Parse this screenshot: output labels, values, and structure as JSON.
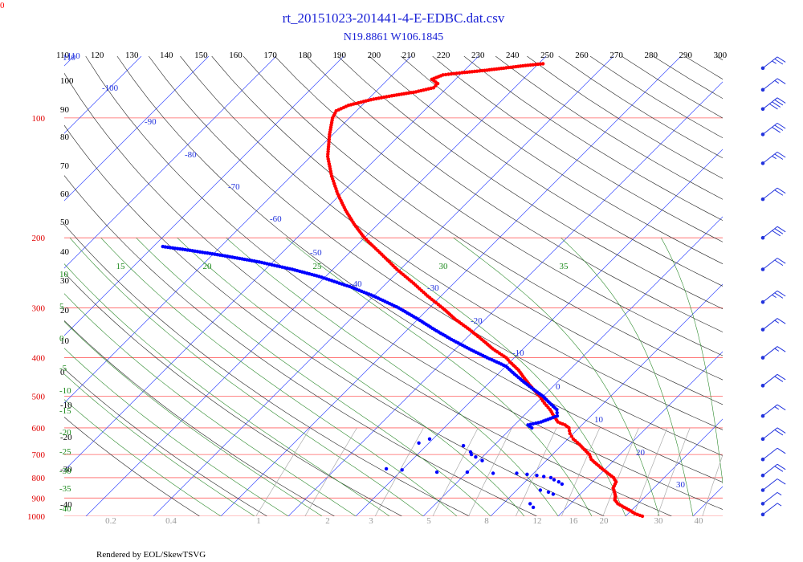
{
  "chart_data": {
    "type": "skew-t",
    "title": "rt_20151023-201441-4-E-EDBC.dat.csv",
    "subtitle": "N19.8861 W106.1845",
    "footer": "Rendered by EOL/SkewTSVG",
    "corner_label": "0",
    "pressure_axis": {
      "unit": "hPa",
      "range": [
        1000,
        70
      ],
      "ticks": [
        100,
        200,
        300,
        400,
        500,
        600,
        700,
        800,
        900,
        1000
      ]
    },
    "temperature_axis_top": {
      "unit": "K",
      "ticks": [
        110,
        120,
        130,
        140,
        150,
        160,
        170,
        180,
        190,
        200,
        210,
        220,
        230,
        240,
        250,
        260,
        270,
        280,
        290,
        300
      ]
    },
    "left_altitude_labels": [
      100,
      90,
      80,
      70,
      60,
      50,
      40,
      30,
      20,
      10,
      0,
      -10,
      -20,
      -30,
      -40
    ],
    "isotherm_labels": [
      -110,
      -100,
      -90,
      -80,
      -70,
      -60,
      -50,
      -40,
      -30,
      -20,
      -10,
      0,
      10,
      20,
      30
    ],
    "isotherm_top_label": "110",
    "moist_adiabat_labels": [
      10,
      5,
      0,
      -5,
      -10,
      -15,
      -20,
      -25,
      -30,
      -35,
      -40
    ],
    "moist_adiabat_top_labels": [
      15,
      20,
      25,
      30,
      35
    ],
    "mixing_ratio_labels": [
      "0.2",
      "0.4",
      "1",
      "2",
      "3",
      "5",
      "8",
      "12",
      "16",
      "20",
      "30",
      "40"
    ],
    "series": [
      {
        "kind": "temperature",
        "color": "#ff0000",
        "points": [
          [
            1000,
            22.5
          ],
          [
            985,
            21.0
          ],
          [
            970,
            20.0
          ],
          [
            950,
            18.5
          ],
          [
            930,
            17.0
          ],
          [
            910,
            16.0
          ],
          [
            890,
            15.5
          ],
          [
            870,
            14.8
          ],
          [
            850,
            14.0
          ],
          [
            820,
            13.5
          ],
          [
            800,
            12.5
          ],
          [
            780,
            11.0
          ],
          [
            760,
            9.5
          ],
          [
            740,
            8.0
          ],
          [
            720,
            6.5
          ],
          [
            700,
            5.5
          ],
          [
            680,
            4.0
          ],
          [
            660,
            2.5
          ],
          [
            640,
            0.8
          ],
          [
            620,
            -0.5
          ],
          [
            600,
            -1.5
          ],
          [
            590,
            -2.5
          ],
          [
            580,
            -4.0
          ],
          [
            560,
            -5.5
          ],
          [
            540,
            -7.0
          ],
          [
            520,
            -8.8
          ],
          [
            500,
            -10.5
          ],
          [
            470,
            -13.5
          ],
          [
            450,
            -15.5
          ],
          [
            430,
            -17.5
          ],
          [
            410,
            -20.0
          ],
          [
            400,
            -21.2
          ],
          [
            380,
            -24.5
          ],
          [
            360,
            -27.5
          ],
          [
            340,
            -30.8
          ],
          [
            320,
            -34.5
          ],
          [
            300,
            -38.0
          ],
          [
            280,
            -42.0
          ],
          [
            260,
            -46.0
          ],
          [
            240,
            -50.5
          ],
          [
            220,
            -55.0
          ],
          [
            200,
            -60.0
          ],
          [
            185,
            -63.5
          ],
          [
            170,
            -67.0
          ],
          [
            155,
            -70.5
          ],
          [
            140,
            -74.0
          ],
          [
            125,
            -77.5
          ],
          [
            110,
            -80.5
          ],
          [
            100,
            -82.5
          ],
          [
            96,
            -83.0
          ],
          [
            93,
            -82.0
          ],
          [
            90,
            -79.5
          ],
          [
            88,
            -77.0
          ],
          [
            86,
            -74.0
          ],
          [
            84,
            -72.0
          ],
          [
            82,
            -72.0
          ],
          [
            80,
            -73.5
          ],
          [
            78,
            -72.5
          ],
          [
            77,
            -70.0
          ],
          [
            76,
            -67.0
          ],
          [
            75,
            -64.5
          ],
          [
            74,
            -62.0
          ],
          [
            73,
            -59.0
          ]
        ]
      },
      {
        "kind": "dewpoint",
        "color": "#0000ff",
        "points": [
          [
            600,
            -7.0
          ],
          [
            590,
            -8.0
          ],
          [
            580,
            -6.5
          ],
          [
            560,
            -5.0
          ],
          [
            540,
            -6.0
          ],
          [
            520,
            -8.0
          ],
          [
            500,
            -10.0
          ],
          [
            480,
            -12.5
          ],
          [
            460,
            -15.0
          ],
          [
            440,
            -17.5
          ],
          [
            420,
            -20.0
          ],
          [
            400,
            -24.0
          ],
          [
            380,
            -28.0
          ],
          [
            360,
            -32.0
          ],
          [
            340,
            -36.0
          ],
          [
            320,
            -40.0
          ],
          [
            300,
            -44.5
          ],
          [
            280,
            -50.0
          ],
          [
            265,
            -55.0
          ],
          [
            250,
            -61.0
          ],
          [
            240,
            -66.0
          ],
          [
            230,
            -72.0
          ],
          [
            222,
            -78.0
          ],
          [
            215,
            -84.0
          ],
          [
            210,
            -89.0
          ]
        ],
        "scatter_points": [
          [
            640,
            -20.5
          ],
          [
            655,
            -21.5
          ],
          [
            665,
            -14.5
          ],
          [
            690,
            -12.5
          ],
          [
            700,
            -12.0
          ],
          [
            710,
            -11.0
          ],
          [
            725,
            -9.5
          ],
          [
            760,
            -22.5
          ],
          [
            765,
            -20.0
          ],
          [
            775,
            -14.5
          ],
          [
            775,
            -10.0
          ],
          [
            780,
            -6.0
          ],
          [
            780,
            -2.5
          ],
          [
            785,
            -0.8
          ],
          [
            790,
            0.8
          ],
          [
            795,
            2.0
          ],
          [
            800,
            3.2
          ],
          [
            810,
            4.0
          ],
          [
            820,
            5.0
          ],
          [
            830,
            5.8
          ],
          [
            860,
            3.5
          ],
          [
            870,
            5.0
          ],
          [
            880,
            6.0
          ],
          [
            930,
            4.0
          ],
          [
            950,
            5.0
          ]
        ]
      }
    ],
    "wind_barbs": [
      {
        "p": 75,
        "speed_kt": 25
      },
      {
        "p": 85,
        "speed_kt": 15
      },
      {
        "p": 95,
        "speed_kt": 40
      },
      {
        "p": 110,
        "speed_kt": 30
      },
      {
        "p": 130,
        "speed_kt": 25
      },
      {
        "p": 160,
        "speed_kt": 20
      },
      {
        "p": 200,
        "speed_kt": 30
      },
      {
        "p": 240,
        "speed_kt": 20
      },
      {
        "p": 290,
        "speed_kt": 25
      },
      {
        "p": 340,
        "speed_kt": 15
      },
      {
        "p": 400,
        "speed_kt": 15
      },
      {
        "p": 470,
        "speed_kt": 20
      },
      {
        "p": 560,
        "speed_kt": 15
      },
      {
        "p": 640,
        "speed_kt": 20
      },
      {
        "p": 720,
        "speed_kt": 10
      },
      {
        "p": 790,
        "speed_kt": 20
      },
      {
        "p": 860,
        "speed_kt": 10
      },
      {
        "p": 930,
        "speed_kt": 5
      },
      {
        "p": 990,
        "speed_kt": 5
      }
    ]
  }
}
